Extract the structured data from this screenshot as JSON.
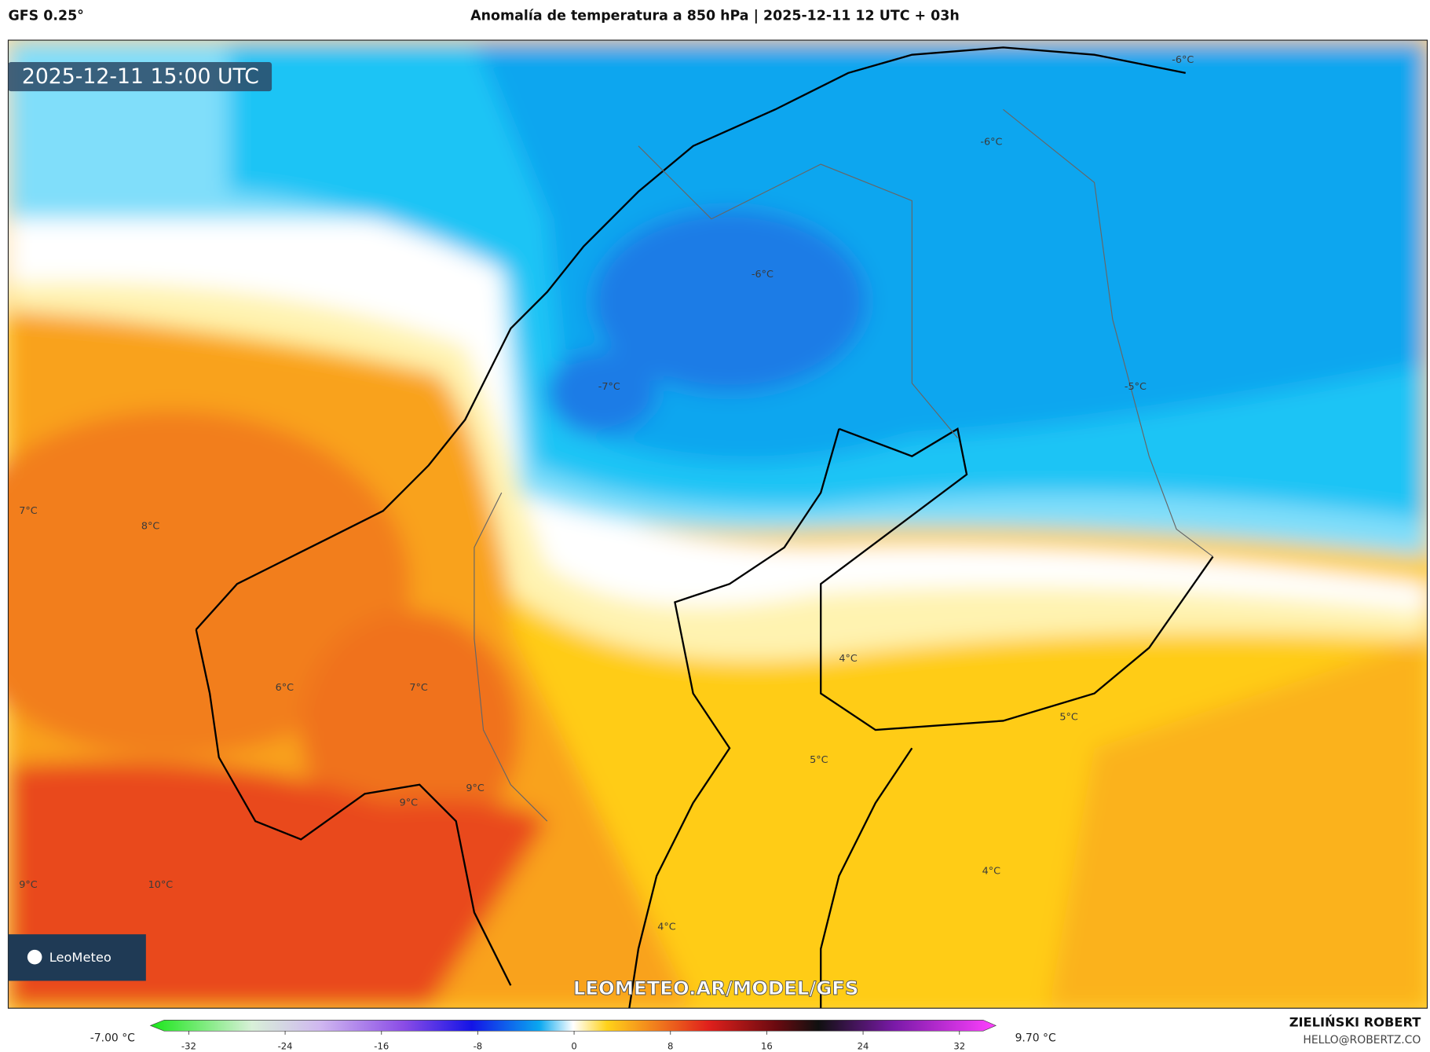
{
  "header": {
    "model": "GFS 0.25°",
    "title": "Anomalía de temperatura a 850 hPa | 2025-12-11 12 UTC + 03h"
  },
  "map": {
    "timestamp": "2025-12-11 15:00 UTC",
    "labels": [
      "-6°C",
      "-6°C",
      "-6°C",
      "-7°C",
      "-5°C",
      "7°C",
      "8°C",
      "4°C",
      "6°C",
      "7°C",
      "5°C",
      "5°C",
      "9°C",
      "9°C",
      "9°C",
      "10°C",
      "4°C",
      "4°C"
    ],
    "logo": "LeoMeteo",
    "watermark": "LEOMETEO.AR/MODEL/GFS"
  },
  "colorbar": {
    "min_label": "-7.00 °C",
    "max_label": "9.70 °C",
    "ticks": [
      -32,
      -24,
      -16,
      -8,
      0,
      8,
      16,
      24,
      32
    ]
  },
  "credits": {
    "author": "ZIELIŃSKI ROBERT",
    "email": "HELLO@ROBERTZ.CO"
  }
}
